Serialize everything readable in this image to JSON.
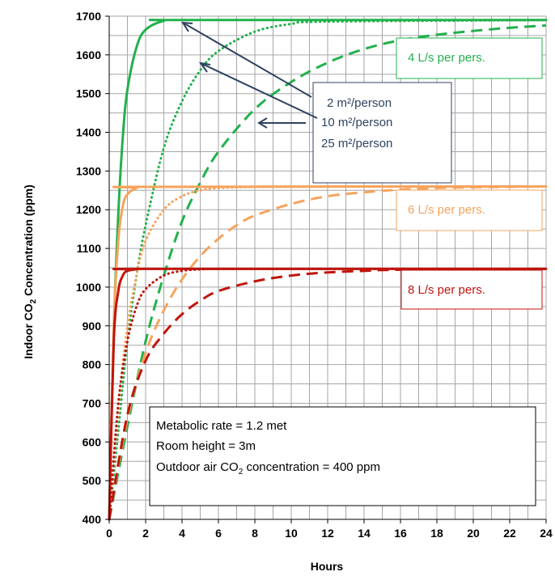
{
  "chart_data": {
    "type": "line",
    "title": "",
    "xlabel": "Hours",
    "ylabel_parts": [
      "Indoor CO",
      "2",
      " Concentration (ppm)"
    ],
    "xlim": [
      0,
      24
    ],
    "ylim": [
      400,
      1700
    ],
    "x_ticks": [
      "0",
      "2",
      "4",
      "6",
      "8",
      "10",
      "12",
      "14",
      "16",
      "18",
      "20",
      "22",
      "24"
    ],
    "y_ticks": [
      "400",
      "500",
      "600",
      "700",
      "800",
      "900",
      "1000",
      "1100",
      "1200",
      "1300",
      "1400",
      "1500",
      "1600",
      "1700"
    ],
    "grid": true,
    "series": [
      {
        "group": "4 L/s per pers.",
        "density": "2 m²/person",
        "color": "#22b14c",
        "style": "solid",
        "x": [
          0,
          0.25,
          0.5,
          0.75,
          1,
          1.5,
          2,
          3,
          4,
          24
        ],
        "y": [
          400,
          890,
          1190,
          1390,
          1510,
          1620,
          1665,
          1688,
          1690,
          1690
        ]
      },
      {
        "group": "4 L/s per pers.",
        "density": "10 m²/person",
        "color": "#22b14c",
        "style": "dotted",
        "x": [
          0,
          0.5,
          1,
          1.5,
          2,
          3,
          4,
          5,
          6,
          8,
          10,
          12,
          24
        ],
        "y": [
          400,
          630,
          860,
          1030,
          1160,
          1360,
          1480,
          1560,
          1610,
          1660,
          1680,
          1686,
          1690
        ]
      },
      {
        "group": "4 L/s per pers.",
        "density": "25 m²/person",
        "color": "#22b14c",
        "style": "dashed",
        "x": [
          0,
          1,
          2,
          3,
          4,
          5,
          6,
          8,
          10,
          12,
          14,
          16,
          18,
          20,
          22,
          24
        ],
        "y": [
          400,
          640,
          860,
          1030,
          1170,
          1270,
          1350,
          1460,
          1530,
          1580,
          1615,
          1638,
          1652,
          1662,
          1670,
          1676
        ]
      },
      {
        "group": "6 L/s per pers.",
        "density": "2 m²/person",
        "color": "#f7a35c",
        "style": "solid",
        "x": [
          0,
          0.25,
          0.5,
          0.75,
          1,
          1.5,
          2,
          24
        ],
        "y": [
          400,
          900,
          1120,
          1210,
          1240,
          1256,
          1259,
          1260
        ]
      },
      {
        "group": "6 L/s per pers.",
        "density": "10 m²/person",
        "color": "#f7a35c",
        "style": "dotted",
        "x": [
          0,
          0.5,
          1,
          1.5,
          2,
          3,
          4,
          5,
          6,
          8,
          10,
          24
        ],
        "y": [
          400,
          690,
          900,
          1030,
          1120,
          1200,
          1235,
          1250,
          1256,
          1259,
          1260,
          1260
        ]
      },
      {
        "group": "6 L/s per pers.",
        "density": "25 m²/person",
        "color": "#f7a35c",
        "style": "dashed",
        "x": [
          0,
          1,
          2,
          3,
          4,
          5,
          6,
          7,
          8,
          10,
          12,
          14,
          16,
          18,
          20,
          24
        ],
        "y": [
          400,
          660,
          830,
          940,
          1020,
          1080,
          1125,
          1160,
          1185,
          1215,
          1235,
          1245,
          1252,
          1256,
          1258,
          1260
        ]
      },
      {
        "group": "8 L/s per pers.",
        "density": "2 m²/person",
        "color": "#c0140c",
        "style": "solid",
        "x": [
          0,
          0.25,
          0.5,
          0.75,
          1,
          1.5,
          2,
          24
        ],
        "y": [
          400,
          860,
          990,
          1030,
          1042,
          1046,
          1047,
          1047
        ]
      },
      {
        "group": "8 L/s per pers.",
        "density": "10 m²/person",
        "color": "#c0140c",
        "style": "dotted",
        "x": [
          0,
          0.5,
          1,
          1.5,
          2,
          3,
          4,
          5,
          6,
          8,
          24
        ],
        "y": [
          400,
          700,
          860,
          950,
          995,
          1030,
          1042,
          1046,
          1047,
          1047,
          1047
        ]
      },
      {
        "group": "8 L/s per pers.",
        "density": "25 m²/person",
        "color": "#c0140c",
        "style": "dashed",
        "x": [
          0,
          1,
          2,
          3,
          4,
          5,
          6,
          8,
          10,
          12,
          14,
          16,
          24
        ],
        "y": [
          400,
          670,
          810,
          880,
          930,
          965,
          990,
          1015,
          1030,
          1038,
          1042,
          1045,
          1047
        ]
      }
    ],
    "labels": [
      {
        "text": "4 L/s per pers.",
        "color": "#22b14c"
      },
      {
        "text": "6 L/s per pers.",
        "color": "#f7a35c"
      },
      {
        "text": "8 L/s per pers.",
        "color": "#c0140c"
      }
    ],
    "density_labels": [
      "2 m²/person",
      "10 m²/person",
      "25 m²/person"
    ],
    "info_lines": [
      {
        "text": "Metabolic rate = 1.2 met"
      },
      {
        "text": "Room height = 3m"
      },
      {
        "text_parts": [
          "Outdoor air CO",
          "2",
          " concentration = 400 ppm"
        ]
      }
    ]
  },
  "colors": {
    "annotation": "#2f4260",
    "grid": "#a6a6a6"
  }
}
